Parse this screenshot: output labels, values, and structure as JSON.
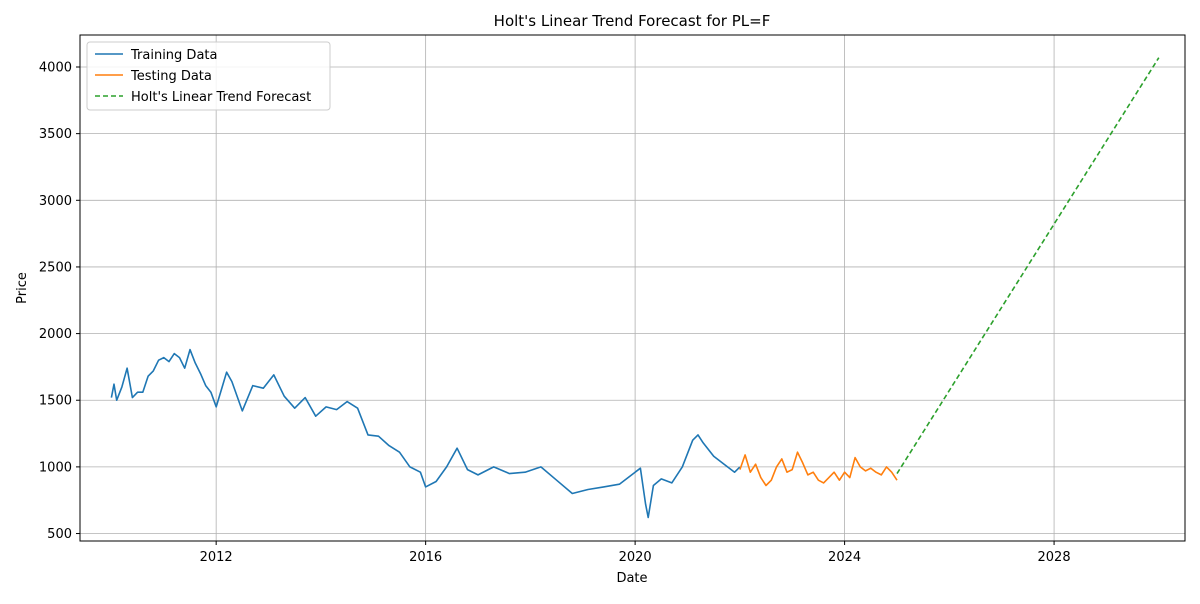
{
  "chart_data": {
    "type": "line",
    "title": "Holt's Linear Trend Forecast for PL=F",
    "xlabel": "Date",
    "ylabel": "Price",
    "xlim": [
      2009.4,
      2030.5
    ],
    "ylim": [
      444,
      4240
    ],
    "x_ticks": [
      {
        "value": 2012,
        "label": "2012"
      },
      {
        "value": 2016,
        "label": "2016"
      },
      {
        "value": 2020,
        "label": "2020"
      },
      {
        "value": 2024,
        "label": "2024"
      },
      {
        "value": 2028,
        "label": "2028"
      }
    ],
    "y_ticks": [
      {
        "value": 500,
        "label": "500"
      },
      {
        "value": 1000,
        "label": "1000"
      },
      {
        "value": 1500,
        "label": "1500"
      },
      {
        "value": 2000,
        "label": "2000"
      },
      {
        "value": 2500,
        "label": "2500"
      },
      {
        "value": 3000,
        "label": "3000"
      },
      {
        "value": 3500,
        "label": "3500"
      },
      {
        "value": 4000,
        "label": "4000"
      }
    ],
    "grid": true,
    "legend_position": "top-left",
    "series": [
      {
        "name": "Training Data",
        "color": "#1f77b4",
        "style": "solid",
        "x": [
          2010.0,
          2010.05,
          2010.1,
          2010.2,
          2010.3,
          2010.4,
          2010.5,
          2010.6,
          2010.7,
          2010.8,
          2010.9,
          2011.0,
          2011.1,
          2011.2,
          2011.3,
          2011.4,
          2011.5,
          2011.6,
          2011.7,
          2011.8,
          2011.9,
          2012.0,
          2012.1,
          2012.2,
          2012.3,
          2012.5,
          2012.7,
          2012.9,
          2013.1,
          2013.3,
          2013.5,
          2013.7,
          2013.9,
          2014.1,
          2014.3,
          2014.5,
          2014.7,
          2014.9,
          2015.1,
          2015.3,
          2015.5,
          2015.7,
          2015.9,
          2016.0,
          2016.2,
          2016.4,
          2016.6,
          2016.8,
          2017.0,
          2017.3,
          2017.6,
          2017.9,
          2018.2,
          2018.5,
          2018.8,
          2019.1,
          2019.4,
          2019.7,
          2020.0,
          2020.1,
          2020.2,
          2020.25,
          2020.35,
          2020.5,
          2020.7,
          2020.9,
          2021.0,
          2021.1,
          2021.2,
          2021.3,
          2021.5,
          2021.7,
          2021.9,
          2022.0
        ],
        "y": [
          1520,
          1620,
          1500,
          1600,
          1740,
          1520,
          1560,
          1560,
          1680,
          1720,
          1800,
          1820,
          1790,
          1850,
          1820,
          1740,
          1880,
          1780,
          1700,
          1610,
          1560,
          1450,
          1580,
          1710,
          1640,
          1420,
          1610,
          1590,
          1690,
          1530,
          1440,
          1520,
          1380,
          1450,
          1430,
          1490,
          1440,
          1240,
          1230,
          1160,
          1110,
          1000,
          960,
          850,
          890,
          1000,
          1140,
          980,
          940,
          1000,
          950,
          960,
          1000,
          900,
          800,
          830,
          850,
          870,
          960,
          990,
          720,
          620,
          860,
          910,
          880,
          1000,
          1100,
          1200,
          1240,
          1180,
          1080,
          1020,
          960,
          1000
        ]
      },
      {
        "name": "Testing Data",
        "color": "#ff7f0e",
        "style": "solid",
        "x": [
          2022.0,
          2022.1,
          2022.2,
          2022.3,
          2022.4,
          2022.5,
          2022.6,
          2022.7,
          2022.8,
          2022.9,
          2023.0,
          2023.1,
          2023.2,
          2023.3,
          2023.4,
          2023.5,
          2023.6,
          2023.7,
          2023.8,
          2023.9,
          2024.0,
          2024.1,
          2024.2,
          2024.3,
          2024.4,
          2024.5,
          2024.6,
          2024.7,
          2024.8,
          2024.9,
          2025.0
        ],
        "y": [
          980,
          1090,
          960,
          1020,
          920,
          860,
          900,
          1000,
          1060,
          960,
          980,
          1110,
          1030,
          940,
          960,
          900,
          880,
          920,
          960,
          900,
          960,
          920,
          1070,
          1000,
          970,
          990,
          960,
          940,
          1000,
          960,
          900
        ]
      },
      {
        "name": "Holt's Linear Trend Forecast",
        "color": "#2ca02c",
        "style": "dashed",
        "x": [
          2025.0,
          2030.0
        ],
        "y": [
          950,
          4070
        ]
      }
    ]
  }
}
